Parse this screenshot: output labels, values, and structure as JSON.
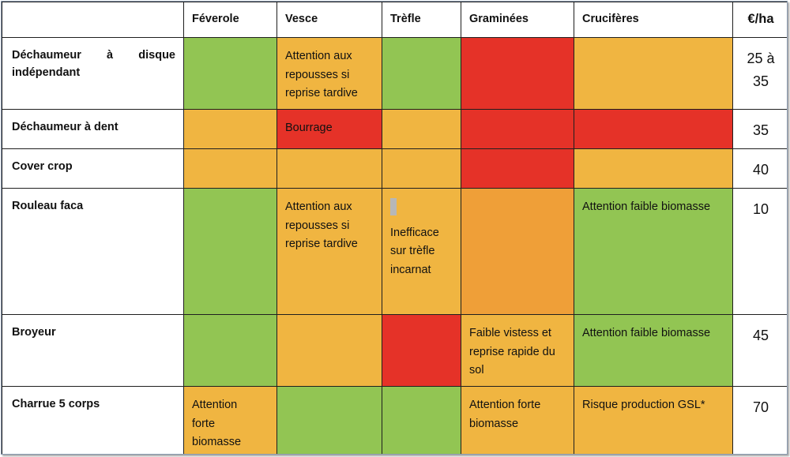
{
  "header": {
    "corner": "",
    "columns": [
      "Féverole",
      "Vesce",
      "Trèfle",
      "Graminées",
      "Crucifères"
    ],
    "price": "€/ha"
  },
  "rows": [
    {
      "tool_line1_words": [
        "Déchaumeur",
        "à",
        "disque"
      ],
      "tool_line2": "indépendant",
      "cells": {
        "veterole": "",
        "vesce_lines": [
          "Attention aux",
          "repousses si",
          "reprise tardive"
        ],
        "trefle": "",
        "graminees": "",
        "cruciferes": ""
      },
      "price_lines": [
        "25 à",
        "35"
      ],
      "colors": [
        "green",
        "orange",
        "green",
        "red",
        "orange"
      ]
    },
    {
      "tool": "Déchaumeur à dent",
      "cells": {
        "vesce": "Bourrage"
      },
      "price": "35",
      "colors": [
        "orange",
        "red",
        "orange",
        "red",
        "red"
      ]
    },
    {
      "tool": "Cover crop",
      "price": "40",
      "colors": [
        "orange",
        "orange",
        "orange",
        "red",
        "orange"
      ]
    },
    {
      "tool": "Rouleau faca",
      "cells": {
        "vesce_lines": [
          "Attention aux",
          "repousses si",
          "reprise tardive"
        ],
        "trefle_lines": [
          "Inefficace",
          "sur trèfle",
          "incarnat"
        ],
        "cruciferes": "Attention faible biomasse"
      },
      "price": "10",
      "colors": [
        "green",
        "orange",
        "orange",
        "dark-orange",
        "green"
      ]
    },
    {
      "tool": "Broyeur",
      "cells": {
        "graminees_lines": [
          "Faible vistess et",
          "reprise rapide du",
          "sol"
        ],
        "cruciferes": "Attention faible biomasse"
      },
      "price": "45",
      "colors": [
        "green",
        "orange",
        "red",
        "orange",
        "green"
      ]
    },
    {
      "tool": "Charrue 5 corps",
      "cells": {
        "feverole_lines": [
          "Attention",
          "forte",
          "biomasse"
        ],
        "graminees_lines": [
          "Attention forte",
          "biomasse"
        ],
        "cruciferes": "Risque production GSL*"
      },
      "price": "70",
      "colors": [
        "orange",
        "green",
        "green",
        "orange",
        "orange"
      ]
    }
  ],
  "colors": {
    "green": "#92c553",
    "orange": "#f0b541",
    "red": "#e53228",
    "dark-orange": "#ef9f38"
  }
}
